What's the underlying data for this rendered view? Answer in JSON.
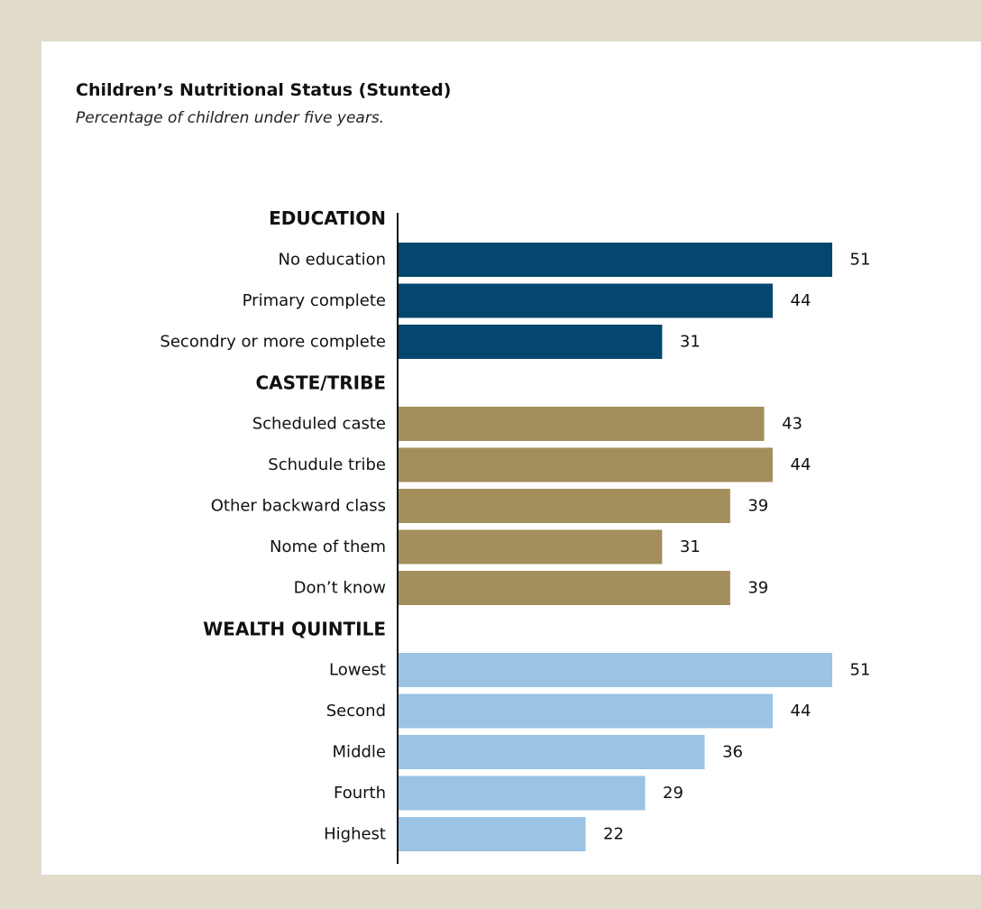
{
  "title": "Children’s Nutritional Status (Stunted)",
  "subtitle": "Percentage of children under five years.",
  "colors": {
    "background": "#e1dbcc",
    "card": "#ffffff",
    "axis": "#111111",
    "education": "#03476e",
    "caste_tribe": "#a38f5c",
    "wealth_quintile": "#9bc3e4"
  },
  "chart_data": {
    "type": "bar",
    "orientation": "horizontal",
    "title": "Children’s Nutritional Status (Stunted)",
    "subtitle": "Percentage of children under five years.",
    "xlim": [
      0,
      51
    ],
    "grid": false,
    "legend": "none",
    "groups": [
      {
        "name": "EDUCATION",
        "color": "#03476e",
        "categories": [
          "No education",
          "Primary complete",
          "Secondry or more complete"
        ],
        "values": [
          51,
          44,
          31
        ]
      },
      {
        "name": "CASTE/TRIBE",
        "color": "#a38f5c",
        "categories": [
          "Scheduled caste",
          "Schudule tribe",
          "Other backward class",
          "Nome of them",
          "Don’t know"
        ],
        "values": [
          43,
          44,
          39,
          31,
          39
        ]
      },
      {
        "name": "WEALTH QUINTILE",
        "color": "#9bc3e4",
        "categories": [
          "Lowest",
          "Second",
          "Middle",
          "Fourth",
          "Highest"
        ],
        "values": [
          51,
          44,
          36,
          29,
          22
        ]
      }
    ]
  }
}
